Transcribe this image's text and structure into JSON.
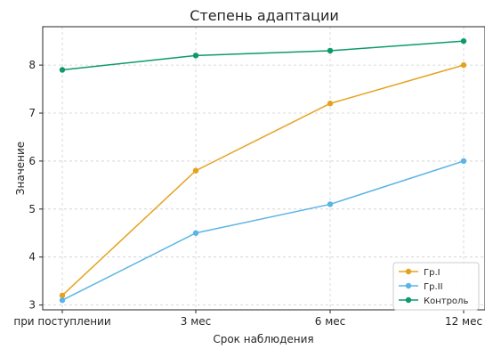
{
  "chart_data": {
    "type": "line",
    "title": "Степень адаптации",
    "xlabel": "Срок наблюдения",
    "ylabel": "Значение",
    "categories": [
      "при поступлении",
      "3 мес",
      "6 мес",
      "12 мес"
    ],
    "ylim": [
      2.9,
      8.8
    ],
    "yticks": [
      3,
      4,
      5,
      6,
      7,
      8
    ],
    "grid": true,
    "legend_position": "bottom-right",
    "series": [
      {
        "name": "Гр.I",
        "color": "#e5a21f",
        "values": [
          3.2,
          5.8,
          7.2,
          8.0
        ]
      },
      {
        "name": "Гр.II",
        "color": "#5ab4e5",
        "values": [
          3.1,
          4.5,
          5.1,
          6.0
        ]
      },
      {
        "name": "Контроль",
        "color": "#0c9a6c",
        "values": [
          7.9,
          8.2,
          8.3,
          8.5
        ]
      }
    ]
  }
}
